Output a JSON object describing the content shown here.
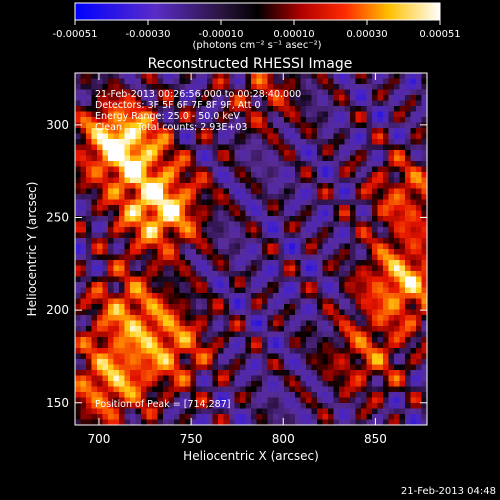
{
  "colorbar": {
    "tick_labels": [
      "-0.00051",
      "-0.00030",
      "-0.00010",
      "0.00010",
      "0.00030",
      "0.00051"
    ],
    "unit_label": "(photons cm⁻² s⁻¹ asec⁻²)"
  },
  "chart_data": {
    "type": "heatmap",
    "title": "Reconstructed RHESSI Image",
    "xlabel": "Heliocentric X (arcsec)",
    "ylabel": "Heliocentric Y (arcsec)",
    "xlim": [
      687,
      878
    ],
    "ylim": [
      138,
      328
    ],
    "x_ticks": [
      700,
      750,
      800,
      850
    ],
    "y_ticks": [
      150,
      200,
      250,
      300
    ],
    "color_range": [
      -0.00051,
      0.00051
    ],
    "colormap": [
      "#0000ff",
      "#5a2cc8",
      "#46246e",
      "#000000",
      "#ff0000",
      "#ffd200",
      "#ffffff"
    ],
    "annotations": [
      "21-Feb-2013 00:26:56.000 to 00:28:40.000",
      "Detectors: 3F 5F 6F 7F 8F 9F, Att 0",
      "Energy Range: 25.0 - 50.0 keV",
      "Clean     Total counts: 2.93E+03",
      "Position of Peak = [714,287]"
    ],
    "peak": [
      714,
      287
    ],
    "bright_regions": [
      {
        "x": 712,
        "y": 290,
        "level": 1.0
      },
      {
        "x": 733,
        "y": 255,
        "level": 0.9
      },
      {
        "x": 740,
        "y": 180,
        "level": 0.55
      },
      {
        "x": 715,
        "y": 200,
        "level": 0.55
      },
      {
        "x": 705,
        "y": 160,
        "level": 0.65
      },
      {
        "x": 865,
        "y": 215,
        "level": 0.75
      },
      {
        "x": 868,
        "y": 262,
        "level": 0.5
      },
      {
        "x": 845,
        "y": 175,
        "level": 0.45
      },
      {
        "x": 790,
        "y": 318,
        "level": 0.35
      }
    ]
  },
  "footer_timestamp": "21-Feb-2013 04:48"
}
